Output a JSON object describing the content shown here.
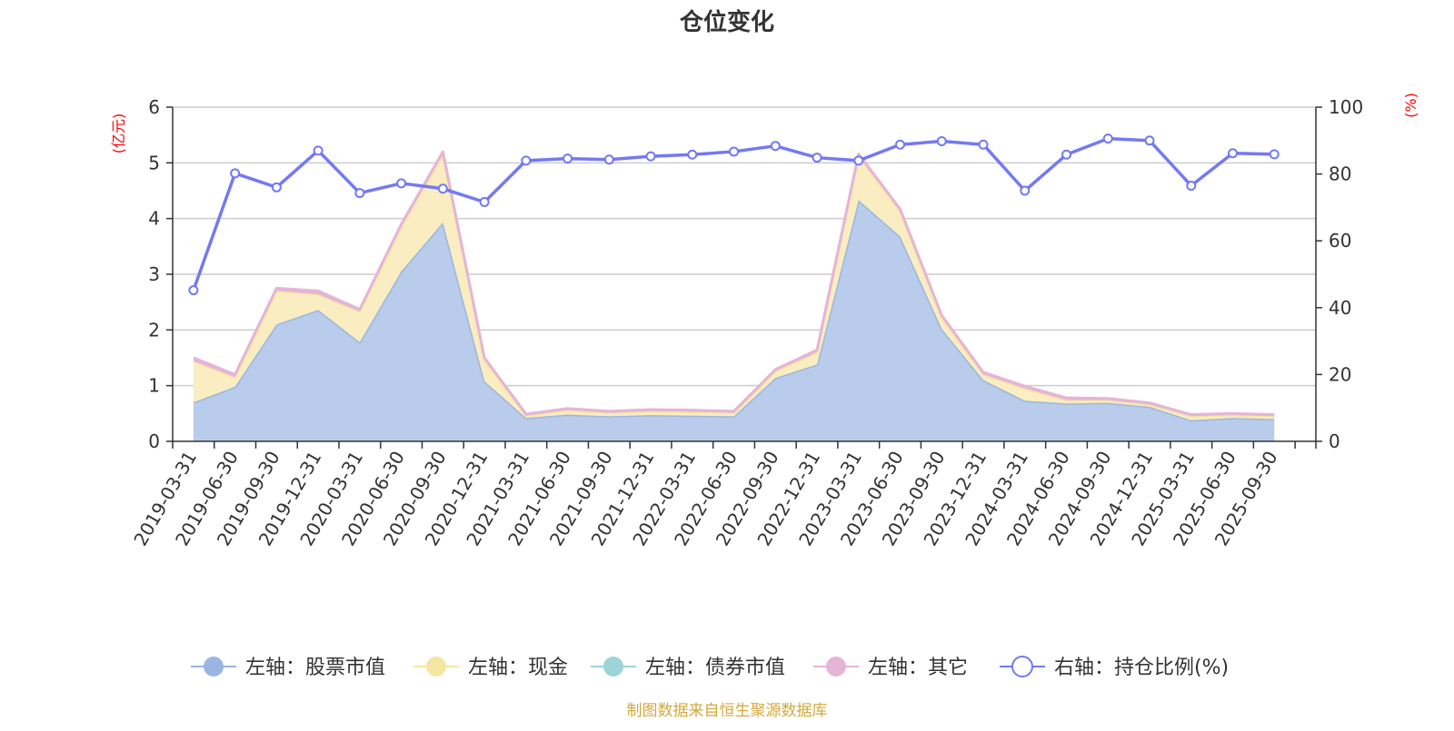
{
  "chart_data": {
    "type": "area",
    "title": "仓位变化",
    "left_axis": {
      "unit": "(亿元)",
      "range": [
        0,
        6
      ],
      "ticks": [
        "0",
        "1",
        "2",
        "3",
        "4",
        "5",
        "6"
      ]
    },
    "right_axis": {
      "unit": "(%)",
      "range": [
        0,
        100
      ],
      "ticks": [
        "0",
        "20",
        "40",
        "60",
        "80",
        "100"
      ]
    },
    "grid": true,
    "legend_position": "bottom",
    "categories": [
      "2019-03-31",
      "2019-06-30",
      "2019-09-30",
      "2019-12-31",
      "2020-03-31",
      "2020-06-30",
      "2020-09-30",
      "2020-12-31",
      "2021-03-31",
      "2021-06-30",
      "2021-09-30",
      "2021-12-31",
      "2022-03-31",
      "2022-06-30",
      "2022-09-30",
      "2022-12-31",
      "2023-03-31",
      "2023-06-30",
      "2023-09-30",
      "2023-12-31",
      "2024-03-31",
      "2024-06-30",
      "2024-09-30",
      "2024-12-31",
      "2025-03-31",
      "2025-06-30",
      "2025-09-30"
    ],
    "series": [
      {
        "name": "左轴：股票市值",
        "axis": "left",
        "stacked": true,
        "color": "#9ab6e0",
        "fill": "#b9cceb",
        "values": [
          0.7,
          0.98,
          2.1,
          2.36,
          1.78,
          3.05,
          3.93,
          1.08,
          0.42,
          0.48,
          0.45,
          0.47,
          0.46,
          0.45,
          1.14,
          1.38,
          4.33,
          3.68,
          2.02,
          1.1,
          0.73,
          0.68,
          0.69,
          0.62,
          0.38,
          0.42,
          0.4
        ]
      },
      {
        "name": "左轴：现金",
        "axis": "left",
        "stacked": true,
        "color": "#f5e6a3",
        "fill": "#f9edc1",
        "values": [
          0.74,
          0.17,
          0.6,
          0.28,
          0.55,
          0.8,
          1.22,
          0.38,
          0.04,
          0.08,
          0.06,
          0.07,
          0.07,
          0.06,
          0.12,
          0.22,
          0.79,
          0.45,
          0.2,
          0.1,
          0.22,
          0.06,
          0.05,
          0.04,
          0.07,
          0.05,
          0.05
        ]
      },
      {
        "name": "左轴：债券市值",
        "axis": "left",
        "stacked": true,
        "color": "#9dd4d8",
        "fill": "#9dd4d8",
        "values": [
          0,
          0,
          0,
          0,
          0,
          0,
          0,
          0,
          0,
          0,
          0,
          0,
          0,
          0,
          0,
          0,
          0,
          0,
          0,
          0,
          0,
          0,
          0,
          0,
          0,
          0,
          0
        ]
      },
      {
        "name": "左轴：其它",
        "axis": "left",
        "stacked": true,
        "color": "#e6b4d6",
        "fill": "#e6b4d6",
        "values": [
          0.06,
          0.05,
          0.05,
          0.06,
          0.04,
          0.05,
          0.05,
          0.04,
          0.03,
          0.03,
          0.03,
          0.03,
          0.03,
          0.03,
          0.03,
          0.04,
          0.04,
          0.04,
          0.04,
          0.04,
          0.04,
          0.04,
          0.03,
          0.03,
          0.03,
          0.03,
          0.03
        ]
      },
      {
        "name": "右轴：持仓比例(%)",
        "axis": "right",
        "type": "line",
        "color": "#7479f2",
        "values": [
          45.2,
          80.2,
          76.0,
          87.0,
          74.3,
          77.2,
          75.6,
          71.6,
          84.0,
          84.6,
          84.3,
          85.3,
          85.8,
          86.7,
          88.4,
          84.9,
          84.0,
          88.8,
          89.8,
          88.8,
          75.0,
          85.8,
          90.6,
          90.0,
          76.5,
          86.2,
          85.9
        ]
      }
    ],
    "source_note": "制图数据来自恒生聚源数据库"
  }
}
